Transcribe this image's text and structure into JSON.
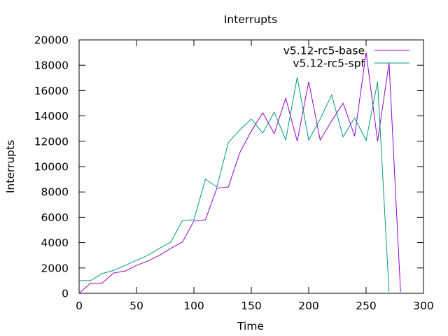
{
  "chart_data": {
    "type": "line",
    "title": "Interrupts",
    "xlabel": "Time",
    "ylabel": "Interrupts",
    "xlim": [
      0,
      300
    ],
    "ylim": [
      0,
      20000
    ],
    "x_ticks": [
      0,
      50,
      100,
      150,
      200,
      250,
      300
    ],
    "y_ticks": [
      0,
      2000,
      4000,
      6000,
      8000,
      10000,
      12000,
      14000,
      16000,
      18000,
      20000
    ],
    "grid": false,
    "legend_position": "top-right",
    "series": [
      {
        "name": "v5.12-rc5-base",
        "color": "#9400d3",
        "x": [
          0,
          10,
          20,
          30,
          40,
          50,
          60,
          70,
          80,
          90,
          100,
          110,
          120,
          130,
          140,
          150,
          160,
          170,
          180,
          190,
          200,
          210,
          220,
          230,
          240,
          250,
          260,
          270,
          280
        ],
        "y": [
          0,
          800,
          800,
          1600,
          1750,
          2200,
          2550,
          3000,
          3550,
          4050,
          5700,
          5800,
          8300,
          8400,
          11100,
          12800,
          14250,
          12600,
          15400,
          12000,
          16700,
          12100,
          13600,
          15000,
          12400,
          19000,
          12000,
          18200,
          100
        ]
      },
      {
        "name": "v5.12-rc5-spf",
        "color": "#009e73",
        "x": [
          0,
          10,
          20,
          30,
          40,
          50,
          60,
          70,
          80,
          90,
          100,
          110,
          120,
          130,
          140,
          150,
          160,
          170,
          180,
          190,
          200,
          210,
          220,
          230,
          240,
          250,
          260,
          270
        ],
        "y": [
          1000,
          1000,
          1550,
          1800,
          2200,
          2600,
          3000,
          3550,
          4050,
          5750,
          5800,
          9000,
          8400,
          11900,
          12900,
          13750,
          12650,
          14300,
          12100,
          17050,
          12100,
          13750,
          15650,
          12350,
          13850,
          12050,
          16700,
          100
        ]
      }
    ]
  }
}
